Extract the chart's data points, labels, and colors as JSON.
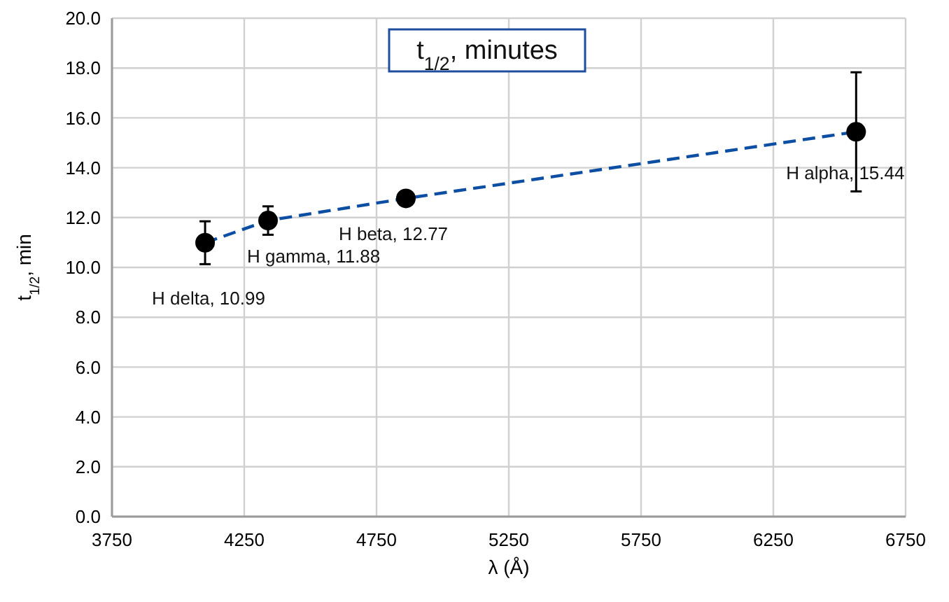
{
  "chart_data": {
    "type": "line",
    "title": "t$_{1/2}$, minutes",
    "xlabel": "λ (Å)",
    "ylabel": "t$_{1/2}$, min",
    "x": [
      4102,
      4340,
      4861,
      6563
    ],
    "series": [
      {
        "color": "#0b4ea2",
        "colors": [
          "#000000",
          "#000000",
          "#000000",
          "#000000"
        ],
        "values": [
          10.99,
          11.88,
          12.77,
          15.44
        ],
        "errors": [
          0.86,
          0.57,
          0.28,
          2.39
        ],
        "value_labels": [
          "H delta, 10.99",
          "H gamma, 11.88",
          "H beta, 12.77",
          "H alpha, 15.44"
        ]
      }
    ],
    "xlim": [
      3750,
      6750
    ],
    "xticks": [
      3750,
      4250,
      4750,
      5250,
      5750,
      6250,
      6750
    ],
    "ylim": [
      0,
      20
    ],
    "yticks": [
      {
        "value": 0,
        "label": "0.0"
      },
      {
        "value": 2,
        "label": "2.0"
      },
      {
        "value": 4,
        "label": "4.0"
      },
      {
        "value": 6,
        "label": "6.0"
      },
      {
        "value": 8,
        "label": "8.0"
      },
      {
        "value": 10,
        "label": "10.0"
      },
      {
        "value": 12,
        "label": "12.0"
      },
      {
        "value": 14,
        "label": "14.0"
      },
      {
        "value": 16,
        "label": "16.0"
      },
      {
        "value": 18,
        "label": "18.0"
      },
      {
        "value": 20,
        "label": "20.0"
      }
    ],
    "grid": true,
    "marker": "circle",
    "line_style": "dashed"
  }
}
